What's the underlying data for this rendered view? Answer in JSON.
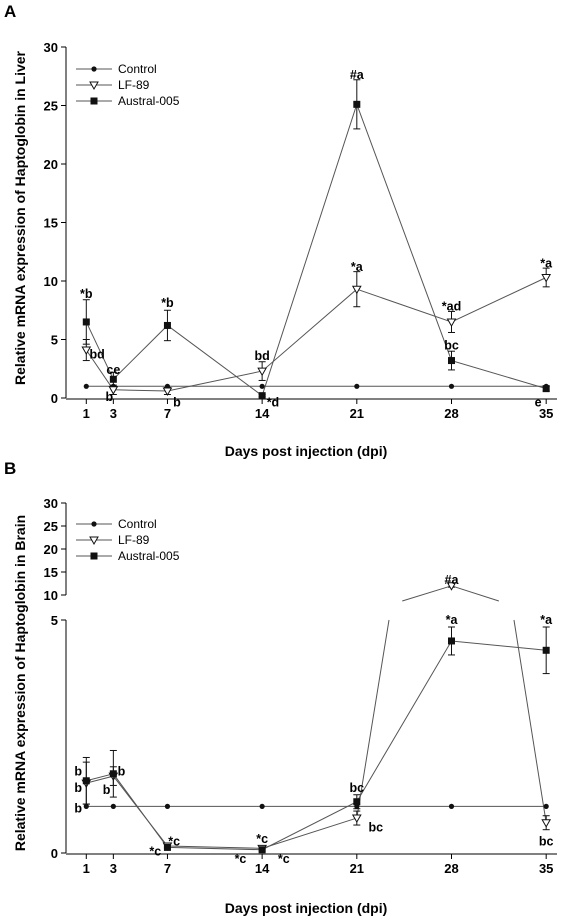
{
  "chart_data": [
    {
      "panel": "A",
      "type": "line",
      "ylabel": "Relative mRNA expression of Haptoglobin in Liver",
      "xlabel": "Days post injection (dpi)",
      "x": [
        1,
        3,
        7,
        14,
        21,
        28,
        35
      ],
      "x_tick_labels": [
        "1",
        "3",
        "7",
        "14",
        "21",
        "28",
        "35"
      ],
      "ylim": [
        0,
        30
      ],
      "y_ticks": [
        0,
        5,
        10,
        15,
        20,
        25,
        30
      ],
      "y_tick_labels": [
        "0",
        "5",
        "10",
        "15",
        "20",
        "25",
        "30"
      ],
      "legend": [
        "Control",
        "LF-89",
        "Austral-005"
      ],
      "legend_position": "top-left",
      "series": [
        {
          "name": "Control",
          "marker": "circle",
          "values": [
            1.0,
            1.0,
            1.0,
            1.0,
            1.0,
            1.0,
            1.0
          ],
          "err": [
            0,
            0,
            0,
            0,
            0,
            0,
            0
          ]
        },
        {
          "name": "LF-89",
          "marker": "triangle-down-open",
          "values": [
            4.1,
            0.7,
            0.6,
            2.3,
            9.3,
            6.5,
            10.3
          ],
          "err": [
            0.9,
            0.4,
            0.3,
            0.8,
            1.5,
            0.9,
            0.8
          ]
        },
        {
          "name": "Austral-005",
          "marker": "square",
          "values": [
            6.5,
            1.6,
            6.2,
            0.2,
            25.1,
            3.2,
            0.8
          ],
          "err": [
            1.9,
            0.6,
            1.3,
            0.1,
            2.1,
            0.8,
            0.2
          ]
        }
      ],
      "annotations": [
        {
          "x": 1,
          "y": 8.9,
          "text": "*b"
        },
        {
          "x": 1.8,
          "y": 3.7,
          "text": "bd"
        },
        {
          "x": 3,
          "y": 2.4,
          "text": "ce"
        },
        {
          "x": 2.7,
          "y": 0.1,
          "text": "b"
        },
        {
          "x": 7,
          "y": 8.1,
          "text": "*b"
        },
        {
          "x": 7.7,
          "y": -0.4,
          "text": "b"
        },
        {
          "x": 14,
          "y": 3.6,
          "text": "bd"
        },
        {
          "x": 14.8,
          "y": -0.4,
          "text": "*d"
        },
        {
          "x": 21,
          "y": 27.6,
          "text": "#a"
        },
        {
          "x": 21,
          "y": 11.2,
          "text": "*a"
        },
        {
          "x": 28,
          "y": 7.8,
          "text": "*ad"
        },
        {
          "x": 28,
          "y": 4.5,
          "text": "bc"
        },
        {
          "x": 35,
          "y": 11.5,
          "text": "*a"
        },
        {
          "x": 34.4,
          "y": -0.4,
          "text": "e"
        }
      ]
    },
    {
      "panel": "B",
      "type": "line",
      "ylabel": "Relative mRNA expression of Haptoglobin in Brain",
      "xlabel": "Days post injection (dpi)",
      "x": [
        1,
        3,
        7,
        14,
        21,
        28,
        35
      ],
      "x_tick_labels": [
        "1",
        "3",
        "7",
        "14",
        "21",
        "28",
        "35"
      ],
      "broken_axis": true,
      "ylim_lower": [
        0,
        5
      ],
      "ylim_upper": [
        10,
        30
      ],
      "y_ticks": [
        0,
        5,
        10,
        15,
        20,
        25,
        30
      ],
      "y_tick_labels": [
        "0",
        "5",
        "10",
        "15",
        "20",
        "25",
        "30"
      ],
      "legend": [
        "Control",
        "LF-89",
        "Austral-005"
      ],
      "legend_position": "top-left",
      "series": [
        {
          "name": "Control",
          "marker": "circle",
          "values": [
            1.0,
            1.0,
            1.0,
            1.0,
            1.0,
            1.0,
            1.0
          ],
          "err": [
            0,
            0,
            0,
            0,
            0,
            0,
            0
          ]
        },
        {
          "name": "LF-89",
          "marker": "triangle-down-open",
          "values": [
            1.5,
            1.65,
            0.15,
            0.1,
            0.75,
            12.0,
            0.65
          ],
          "err": [
            0.45,
            0.2,
            0.03,
            0.03,
            0.15,
            0.3,
            0.15
          ]
        },
        {
          "name": "Austral-005",
          "marker": "square",
          "values": [
            1.55,
            1.7,
            0.12,
            0.07,
            1.1,
            4.55,
            4.35
          ],
          "err": [
            0.5,
            0.5,
            0.03,
            0.03,
            0.15,
            0.3,
            0.5
          ]
        }
      ],
      "annotations": [
        {
          "x": 12.4,
          "y": -0.08,
          "text": "*c"
        },
        {
          "x": 0.4,
          "y": 1.75,
          "text": "b"
        },
        {
          "x": 0.4,
          "y": 1.4,
          "text": "b"
        },
        {
          "x": 0.4,
          "y": 0.95,
          "text": "b"
        },
        {
          "x": 3.6,
          "y": 1.75,
          "text": "b"
        },
        {
          "x": 2.5,
          "y": 1.35,
          "text": "b"
        },
        {
          "x": 7.5,
          "y": 0.25,
          "text": "*c"
        },
        {
          "x": 6.1,
          "y": 0.03,
          "text": "*c"
        },
        {
          "x": 14,
          "y": 0.3,
          "text": "*c"
        },
        {
          "x": 15.6,
          "y": -0.07,
          "text": "*c"
        },
        {
          "x": 21,
          "y": 1.4,
          "text": "bc"
        },
        {
          "x": 22.4,
          "y": 0.55,
          "text": "bc"
        },
        {
          "x": 28,
          "y": 5.0,
          "text": "*a"
        },
        {
          "x": 28,
          "y": 13.3,
          "text": "#a"
        },
        {
          "x": 35,
          "y": 5.0,
          "text": "*a"
        },
        {
          "x": 35,
          "y": 0.25,
          "text": "bc"
        }
      ]
    }
  ],
  "panel_letters": {
    "a": "A",
    "b": "B"
  },
  "axis_titles": {
    "a_y": "Relative mRNA expression of Haptoglobin in Liver",
    "a_x": "Days post injection (dpi)",
    "b_y": "Relative mRNA expression of Haptoglobin in Brain",
    "b_x": "Days post injection (dpi)"
  },
  "colors": {
    "line": "#555555",
    "marker": "#111111",
    "axis": "#000000"
  }
}
